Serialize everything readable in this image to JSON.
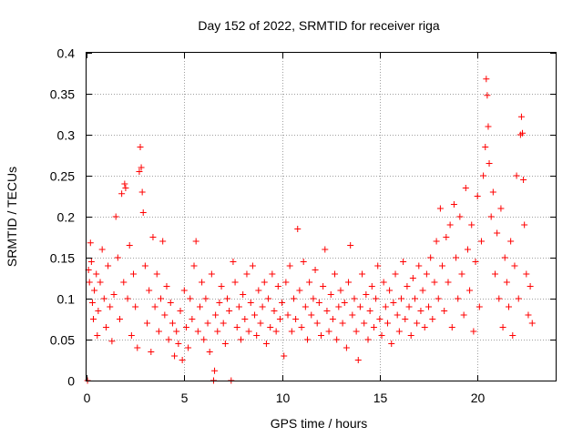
{
  "chart_data": {
    "type": "scatter",
    "title": "Day 152 of 2022, SRMTID for receiver riga",
    "xlabel": "GPS time / hours",
    "ylabel": "SRMTID / TECUs",
    "xlim": [
      0,
      24
    ],
    "ylim": [
      0,
      0.4
    ],
    "xticks": [
      0,
      5,
      10,
      15,
      20
    ],
    "xtick_labels": [
      "0",
      "5",
      "10",
      "15",
      "20"
    ],
    "yticks": [
      0,
      0.05,
      0.1,
      0.15,
      0.2,
      0.25,
      0.3,
      0.35,
      0.4
    ],
    "ytick_labels": [
      "0",
      "0.05",
      "0.1",
      "0.15",
      "0.2",
      "0.25",
      "0.3",
      "0.35",
      "0.4"
    ],
    "grid": true,
    "marker": "plus",
    "color": "#ff0000",
    "series": [
      {
        "name": "SRMTID",
        "points": [
          [
            0.05,
            0.0
          ],
          [
            0.1,
            0.135
          ],
          [
            0.15,
            0.12
          ],
          [
            0.2,
            0.168
          ],
          [
            0.25,
            0.145
          ],
          [
            0.3,
            0.095
          ],
          [
            0.35,
            0.075
          ],
          [
            0.4,
            0.11
          ],
          [
            0.5,
            0.13
          ],
          [
            0.55,
            0.055
          ],
          [
            0.6,
            0.085
          ],
          [
            0.7,
            0.12
          ],
          [
            0.8,
            0.16
          ],
          [
            0.9,
            0.1
          ],
          [
            1.0,
            0.065
          ],
          [
            1.1,
            0.14
          ],
          [
            1.2,
            0.09
          ],
          [
            1.3,
            0.048
          ],
          [
            1.4,
            0.105
          ],
          [
            1.5,
            0.2
          ],
          [
            1.6,
            0.15
          ],
          [
            1.7,
            0.075
          ],
          [
            1.8,
            0.228
          ],
          [
            1.9,
            0.12
          ],
          [
            1.95,
            0.24
          ],
          [
            2.0,
            0.235
          ],
          [
            2.1,
            0.1
          ],
          [
            2.2,
            0.165
          ],
          [
            2.3,
            0.055
          ],
          [
            2.4,
            0.13
          ],
          [
            2.5,
            0.09
          ],
          [
            2.6,
            0.04
          ],
          [
            2.7,
            0.255
          ],
          [
            2.75,
            0.285
          ],
          [
            2.8,
            0.26
          ],
          [
            2.85,
            0.23
          ],
          [
            2.9,
            0.205
          ],
          [
            3.0,
            0.14
          ],
          [
            3.1,
            0.07
          ],
          [
            3.2,
            0.11
          ],
          [
            3.3,
            0.035
          ],
          [
            3.4,
            0.175
          ],
          [
            3.5,
            0.09
          ],
          [
            3.6,
            0.13
          ],
          [
            3.7,
            0.06
          ],
          [
            3.8,
            0.1
          ],
          [
            3.9,
            0.17
          ],
          [
            4.0,
            0.08
          ],
          [
            4.1,
            0.115
          ],
          [
            4.2,
            0.05
          ],
          [
            4.3,
            0.095
          ],
          [
            4.4,
            0.07
          ],
          [
            4.5,
            0.03
          ],
          [
            4.6,
            0.06
          ],
          [
            4.7,
            0.045
          ],
          [
            4.8,
            0.085
          ],
          [
            4.9,
            0.025
          ],
          [
            5.0,
            0.11
          ],
          [
            5.1,
            0.065
          ],
          [
            5.2,
            0.04
          ],
          [
            5.3,
            0.1
          ],
          [
            5.4,
            0.075
          ],
          [
            5.5,
            0.14
          ],
          [
            5.6,
            0.17
          ],
          [
            5.7,
            0.06
          ],
          [
            5.8,
            0.09
          ],
          [
            5.9,
            0.12
          ],
          [
            6.0,
            0.05
          ],
          [
            6.1,
            0.1
          ],
          [
            6.2,
            0.07
          ],
          [
            6.3,
            0.035
          ],
          [
            6.4,
            0.13
          ],
          [
            6.5,
            0.0
          ],
          [
            6.55,
            0.012
          ],
          [
            6.6,
            0.08
          ],
          [
            6.7,
            0.06
          ],
          [
            6.8,
            0.095
          ],
          [
            6.9,
            0.115
          ],
          [
            7.0,
            0.07
          ],
          [
            7.1,
            0.045
          ],
          [
            7.2,
            0.1
          ],
          [
            7.3,
            0.085
          ],
          [
            7.4,
            0.0
          ],
          [
            7.5,
            0.145
          ],
          [
            7.6,
            0.12
          ],
          [
            7.7,
            0.065
          ],
          [
            7.8,
            0.09
          ],
          [
            7.9,
            0.05
          ],
          [
            8.0,
            0.105
          ],
          [
            8.1,
            0.075
          ],
          [
            8.2,
            0.13
          ],
          [
            8.3,
            0.06
          ],
          [
            8.4,
            0.095
          ],
          [
            8.5,
            0.14
          ],
          [
            8.6,
            0.08
          ],
          [
            8.7,
            0.055
          ],
          [
            8.8,
            0.11
          ],
          [
            8.9,
            0.07
          ],
          [
            9.0,
            0.09
          ],
          [
            9.1,
            0.12
          ],
          [
            9.2,
            0.045
          ],
          [
            9.3,
            0.1
          ],
          [
            9.4,
            0.065
          ],
          [
            9.5,
            0.13
          ],
          [
            9.6,
            0.085
          ],
          [
            9.7,
            0.06
          ],
          [
            9.8,
            0.115
          ],
          [
            9.9,
            0.075
          ],
          [
            10.0,
            0.095
          ],
          [
            10.1,
            0.03
          ],
          [
            10.2,
            0.12
          ],
          [
            10.3,
            0.08
          ],
          [
            10.4,
            0.14
          ],
          [
            10.5,
            0.06
          ],
          [
            10.6,
            0.1
          ],
          [
            10.7,
            0.075
          ],
          [
            10.8,
            0.185
          ],
          [
            10.9,
            0.11
          ],
          [
            11.0,
            0.065
          ],
          [
            11.1,
            0.145
          ],
          [
            11.2,
            0.09
          ],
          [
            11.3,
            0.05
          ],
          [
            11.4,
            0.12
          ],
          [
            11.5,
            0.08
          ],
          [
            11.6,
            0.1
          ],
          [
            11.7,
            0.135
          ],
          [
            11.8,
            0.07
          ],
          [
            11.9,
            0.095
          ],
          [
            12.0,
            0.055
          ],
          [
            12.1,
            0.115
          ],
          [
            12.2,
            0.16
          ],
          [
            12.3,
            0.085
          ],
          [
            12.4,
            0.06
          ],
          [
            12.5,
            0.105
          ],
          [
            12.6,
            0.075
          ],
          [
            12.7,
            0.13
          ],
          [
            12.8,
            0.05
          ],
          [
            12.9,
            0.09
          ],
          [
            13.0,
            0.11
          ],
          [
            13.1,
            0.07
          ],
          [
            13.2,
            0.095
          ],
          [
            13.3,
            0.04
          ],
          [
            13.4,
            0.12
          ],
          [
            13.5,
            0.165
          ],
          [
            13.6,
            0.08
          ],
          [
            13.7,
            0.1
          ],
          [
            13.8,
            0.06
          ],
          [
            13.9,
            0.025
          ],
          [
            14.0,
            0.09
          ],
          [
            14.1,
            0.13
          ],
          [
            14.2,
            0.07
          ],
          [
            14.3,
            0.105
          ],
          [
            14.4,
            0.05
          ],
          [
            14.5,
            0.085
          ],
          [
            14.6,
            0.115
          ],
          [
            14.7,
            0.065
          ],
          [
            14.8,
            0.1
          ],
          [
            14.9,
            0.14
          ],
          [
            15.0,
            0.075
          ],
          [
            15.1,
            0.055
          ],
          [
            15.2,
            0.12
          ],
          [
            15.3,
            0.09
          ],
          [
            15.4,
            0.07
          ],
          [
            15.5,
            0.11
          ],
          [
            15.6,
            0.045
          ],
          [
            15.7,
            0.095
          ],
          [
            15.8,
            0.13
          ],
          [
            15.9,
            0.08
          ],
          [
            16.0,
            0.06
          ],
          [
            16.1,
            0.1
          ],
          [
            16.2,
            0.145
          ],
          [
            16.3,
            0.075
          ],
          [
            16.4,
            0.115
          ],
          [
            16.5,
            0.09
          ],
          [
            16.6,
            0.055
          ],
          [
            16.7,
            0.125
          ],
          [
            16.8,
            0.1
          ],
          [
            16.9,
            0.07
          ],
          [
            17.0,
            0.14
          ],
          [
            17.1,
            0.085
          ],
          [
            17.2,
            0.11
          ],
          [
            17.3,
            0.065
          ],
          [
            17.4,
            0.13
          ],
          [
            17.5,
            0.09
          ],
          [
            17.6,
            0.15
          ],
          [
            17.7,
            0.075
          ],
          [
            17.8,
            0.12
          ],
          [
            17.9,
            0.17
          ],
          [
            18.0,
            0.1
          ],
          [
            18.1,
            0.21
          ],
          [
            18.2,
            0.14
          ],
          [
            18.3,
            0.085
          ],
          [
            18.4,
            0.175
          ],
          [
            18.5,
            0.12
          ],
          [
            18.6,
            0.19
          ],
          [
            18.7,
            0.065
          ],
          [
            18.8,
            0.215
          ],
          [
            18.9,
            0.15
          ],
          [
            19.0,
            0.1
          ],
          [
            19.1,
            0.2
          ],
          [
            19.2,
            0.13
          ],
          [
            19.3,
            0.08
          ],
          [
            19.4,
            0.235
          ],
          [
            19.5,
            0.16
          ],
          [
            19.6,
            0.11
          ],
          [
            19.7,
            0.19
          ],
          [
            19.8,
            0.06
          ],
          [
            19.9,
            0.145
          ],
          [
            20.0,
            0.225
          ],
          [
            20.1,
            0.09
          ],
          [
            20.2,
            0.17
          ],
          [
            20.3,
            0.25
          ],
          [
            20.4,
            0.285
          ],
          [
            20.45,
            0.368
          ],
          [
            20.5,
            0.348
          ],
          [
            20.55,
            0.31
          ],
          [
            20.6,
            0.265
          ],
          [
            20.7,
            0.2
          ],
          [
            20.8,
            0.23
          ],
          [
            20.9,
            0.13
          ],
          [
            21.0,
            0.18
          ],
          [
            21.1,
            0.1
          ],
          [
            21.2,
            0.21
          ],
          [
            21.3,
            0.065
          ],
          [
            21.4,
            0.15
          ],
          [
            21.5,
            0.12
          ],
          [
            21.6,
            0.09
          ],
          [
            21.7,
            0.17
          ],
          [
            21.8,
            0.055
          ],
          [
            21.9,
            0.14
          ],
          [
            22.0,
            0.25
          ],
          [
            22.1,
            0.1
          ],
          [
            22.2,
            0.3
          ],
          [
            22.25,
            0.322
          ],
          [
            22.3,
            0.302
          ],
          [
            22.35,
            0.245
          ],
          [
            22.4,
            0.19
          ],
          [
            22.5,
            0.13
          ],
          [
            22.6,
            0.08
          ],
          [
            22.7,
            0.115
          ],
          [
            22.8,
            0.07
          ]
        ]
      }
    ]
  }
}
